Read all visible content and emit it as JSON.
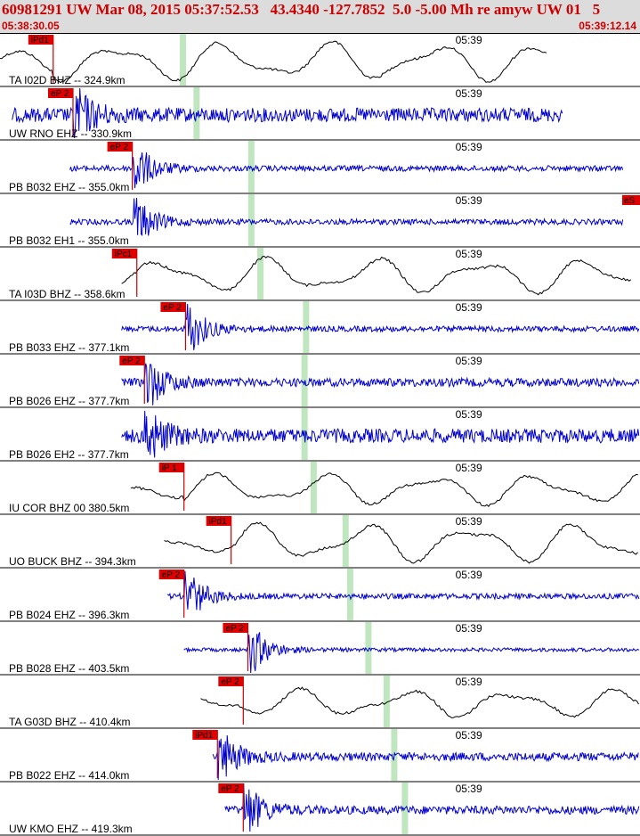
{
  "header": {
    "title": "60981291 UW Mar 08, 2015 05:37:52.53   43.4340 -127.7852  5.0 -5.00 Mh re amyw UW 01   5",
    "time_start": "05:38:30.05",
    "time_end": "05:39:12.14"
  },
  "colors": {
    "header_bg": "#dcdcdc",
    "header_text": "#cc0000",
    "pick_box": "#e00000",
    "pick_line": "#cc0000",
    "s_marker": "#bfe6bf",
    "trace_blue": "#0000cc",
    "trace_black": "#000000",
    "divider": "#000000"
  },
  "chart_data": {
    "type": "line",
    "time_axis": {
      "start": "05:38:30.05",
      "end": "05:39:12.14",
      "minute_mark": "05:39"
    },
    "edge_flag": "eS",
    "channels": [
      {
        "label": "TA I02D BHZ -- 324.9km",
        "pick": "iPd1",
        "pick_t": 3.5,
        "s_t": 12.0,
        "start_t": 0.0,
        "end_t": 36.0,
        "wave": "long",
        "amp": 0.55,
        "color": "black"
      },
      {
        "label": "UW RNO EHZ -- 330.9km",
        "pick": "eP 2",
        "pick_t": 4.8,
        "s_t": 12.9,
        "start_t": 0.8,
        "end_t": 37.0,
        "wave": "noise",
        "amp": 0.3,
        "color": "blue"
      },
      {
        "label": "PB B032 EHZ -- 355.0km",
        "pick": "eP 2",
        "pick_t": 8.7,
        "s_t": 16.5,
        "start_t": 4.6,
        "end_t": 41.0,
        "wave": "noise",
        "amp": 0.12,
        "color": "blue"
      },
      {
        "label": "PB B032 EH1 -- 355.0km",
        "pick": "",
        "pick_t": 8.7,
        "s_t": 16.5,
        "start_t": 4.6,
        "end_t": 41.0,
        "wave": "noise",
        "amp": 0.12,
        "color": "blue"
      },
      {
        "label": "TA I03D BHZ -- 358.6km",
        "pick": "iPc1",
        "pick_t": 9.0,
        "s_t": 17.1,
        "start_t": 8.0,
        "end_t": 41.5,
        "wave": "long",
        "amp": 0.5,
        "color": "black"
      },
      {
        "label": "PB B033 EHZ -- 377.1km",
        "pick": "eP 2",
        "pick_t": 12.2,
        "s_t": 20.1,
        "start_t": 8.0,
        "end_t": 44.5,
        "wave": "noise",
        "amp": 0.12,
        "color": "blue"
      },
      {
        "label": "PB B026 EHZ -- 377.7km",
        "pick": "eP 2",
        "pick_t": 9.5,
        "s_t": 20.0,
        "start_t": 8.0,
        "end_t": 44.5,
        "wave": "noise",
        "amp": 0.18,
        "color": "blue"
      },
      {
        "label": "PB B026 EH2 -- 377.7km",
        "pick": "",
        "pick_t": 9.5,
        "s_t": 20.0,
        "start_t": 8.0,
        "end_t": 44.5,
        "wave": "noise",
        "amp": 0.3,
        "color": "blue"
      },
      {
        "label": "IU COR BHZ 00 380.5km",
        "pick": "iP 1",
        "pick_t": 12.1,
        "s_t": 20.6,
        "start_t": 8.6,
        "end_t": 45.0,
        "wave": "long",
        "amp": 0.45,
        "color": "black"
      },
      {
        "label": "UO BUCK BHZ -- 394.3km",
        "pick": "iPd1",
        "pick_t": 15.2,
        "s_t": 22.7,
        "start_t": 10.8,
        "end_t": 47.0,
        "wave": "long",
        "amp": 0.55,
        "color": "black"
      },
      {
        "label": "PB B024 EHZ -- 396.3km",
        "pick": "eP 2",
        "pick_t": 12.1,
        "s_t": 23.0,
        "start_t": 11.0,
        "end_t": 47.0,
        "wave": "noise",
        "amp": 0.12,
        "color": "blue"
      },
      {
        "label": "PB B028 EHZ -- 403.5km",
        "pick": "eP 2",
        "pick_t": 16.3,
        "s_t": 24.2,
        "start_t": 12.1,
        "end_t": 48.3,
        "wave": "noise",
        "amp": 0.08,
        "color": "blue"
      },
      {
        "label": "TA G03D BHZ -- 410.4km",
        "pick": "eP 2",
        "pick_t": 16.0,
        "s_t": 25.4,
        "start_t": 13.2,
        "end_t": 49.5,
        "wave": "long",
        "amp": 0.4,
        "color": "black"
      },
      {
        "label": "PB B022 EHZ -- 414.0km",
        "pick": "iPd1",
        "pick_t": 14.3,
        "s_t": 25.9,
        "start_t": 14.0,
        "end_t": 50.5,
        "wave": "noise",
        "amp": 0.18,
        "color": "blue"
      },
      {
        "label": "UW KMO EHZ -- 419.3km",
        "pick": "eP 2",
        "pick_t": 16.0,
        "s_t": 26.6,
        "start_t": 14.8,
        "end_t": 51.0,
        "wave": "noise",
        "amp": 0.18,
        "color": "blue"
      }
    ]
  }
}
